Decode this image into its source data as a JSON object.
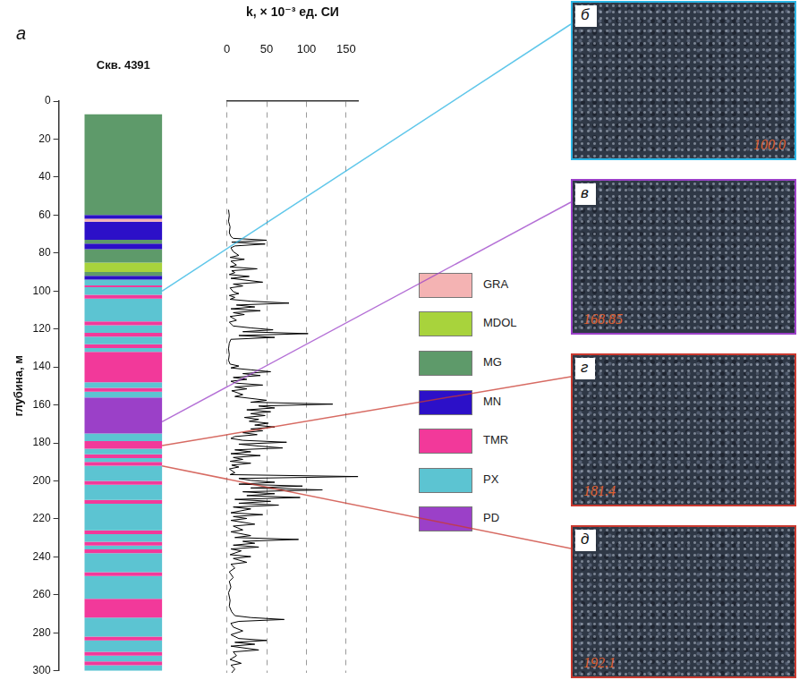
{
  "panel_label": "а",
  "chart_data": [
    {
      "type": "bar",
      "categories": [
        "Скв. 4391"
      ],
      "y_label": "глубина, м",
      "ylim": [
        300,
        0
      ],
      "yticks": [
        0,
        20,
        40,
        60,
        80,
        100,
        120,
        140,
        160,
        180,
        200,
        220,
        240,
        260,
        280,
        300
      ],
      "grid": false,
      "units": [
        {
          "name": "GRA",
          "color": "#f4b3b3"
        },
        {
          "name": "MDOL",
          "color": "#a8d33c"
        },
        {
          "name": "MG",
          "color": "#5e9a6a"
        },
        {
          "name": "MN",
          "color": "#2c10c8"
        },
        {
          "name": "TMR",
          "color": "#f2399a"
        },
        {
          "name": "PX",
          "color": "#5cc4d2"
        },
        {
          "name": "PD",
          "color": "#9b40c8"
        }
      ],
      "intervals": {
        "top": [
          7,
          60,
          62,
          63.5,
          73,
          75,
          78,
          85,
          90,
          92,
          94,
          97,
          98,
          102,
          104,
          116,
          118,
          122,
          124,
          128,
          130,
          132,
          148,
          151,
          153,
          156,
          175,
          179,
          183,
          186,
          188,
          190,
          192,
          200,
          202,
          210,
          212,
          226,
          228,
          232,
          234,
          236,
          238,
          248,
          250,
          262,
          272,
          282,
          284,
          290,
          292,
          295,
          297
        ],
        "bottom": [
          60,
          62,
          63.5,
          73,
          75,
          78,
          85,
          90,
          92,
          94,
          97,
          98,
          102,
          104,
          116,
          118,
          122,
          124,
          128,
          130,
          132,
          148,
          151,
          153,
          156,
          175,
          179,
          183,
          186,
          188,
          190,
          192,
          200,
          202,
          210,
          212,
          226,
          228,
          232,
          234,
          236,
          238,
          248,
          250,
          262,
          272,
          282,
          284,
          290,
          292,
          295,
          297,
          300
        ],
        "unit": [
          "MG",
          "MN",
          "GRA",
          "MN",
          "MG",
          "MN",
          "MG",
          "MDOL",
          "MG",
          "MN",
          "PX",
          "TMR",
          "PX",
          "TMR",
          "PX",
          "TMR",
          "PX",
          "TMR",
          "PX",
          "TMR",
          "PX",
          "TMR",
          "PX",
          "TMR",
          "PX",
          "PD",
          "PX",
          "TMR",
          "PX",
          "TMR",
          "PX",
          "TMR",
          "PX",
          "TMR",
          "PX",
          "TMR",
          "PX",
          "TMR",
          "PX",
          "TMR",
          "PX",
          "TMR",
          "PX",
          "TMR",
          "PX",
          "TMR",
          "PX",
          "TMR",
          "PX",
          "TMR",
          "PX",
          "TMR",
          "PX"
        ]
      }
    },
    {
      "type": "line",
      "x_label": "k, × 10⁻³ ед. СИ",
      "xlim": [
        0,
        165
      ],
      "xticks": [
        0,
        50,
        100,
        150
      ],
      "ylim": [
        300,
        0
      ],
      "grid": true,
      "tick_labels": "x",
      "color": "#000000",
      "depth": [
        57,
        60,
        63,
        66,
        69,
        71,
        72,
        73,
        74,
        75,
        76,
        77,
        79,
        81,
        82,
        83,
        84,
        86,
        87,
        88,
        89,
        90,
        91,
        92,
        93,
        95,
        96,
        97,
        98,
        100,
        101,
        102,
        103,
        104,
        105,
        106,
        107,
        108,
        109,
        110,
        111,
        112,
        113,
        115,
        116,
        118,
        119,
        120,
        121,
        122,
        123,
        124,
        125,
        127,
        130,
        133,
        136,
        138,
        139,
        140,
        141,
        142,
        143,
        144,
        145,
        146,
        147,
        148,
        149,
        150,
        151,
        152,
        154,
        155,
        157,
        158,
        159,
        160,
        161,
        162,
        163,
        164,
        165,
        166,
        167,
        168,
        169,
        170,
        171,
        172,
        173,
        174,
        175,
        176,
        177,
        178,
        179,
        180,
        181,
        182,
        183,
        184,
        185,
        186,
        187,
        188,
        189,
        190,
        191,
        192,
        193,
        195,
        196,
        197,
        198,
        199,
        200,
        201,
        202,
        203,
        204,
        205,
        206,
        207,
        208,
        209,
        210,
        211,
        212,
        213,
        214,
        216,
        217,
        218,
        219,
        220,
        222,
        223,
        225,
        226,
        228,
        229,
        230,
        231,
        232,
        233,
        234,
        235,
        236,
        238,
        239,
        240,
        242,
        243,
        245,
        247,
        250,
        252,
        255,
        258,
        262,
        265,
        268,
        270,
        271,
        272,
        273,
        274,
        276,
        278,
        280,
        282,
        283,
        284,
        285,
        286,
        288,
        289,
        291,
        293,
        295,
        296,
        298,
        300
      ],
      "values": [
        2,
        3,
        2,
        4,
        3,
        5,
        8,
        50,
        6,
        48,
        10,
        5,
        8,
        15,
        4,
        22,
        5,
        12,
        4,
        38,
        6,
        10,
        3,
        28,
        5,
        45,
        8,
        20,
        4,
        8,
        15,
        3,
        10,
        4,
        30,
        78,
        12,
        35,
        5,
        42,
        8,
        22,
        4,
        12,
        3,
        8,
        30,
        58,
        20,
        102,
        15,
        60,
        5,
        3,
        2,
        3,
        2,
        4,
        15,
        5,
        30,
        55,
        20,
        42,
        8,
        25,
        5,
        12,
        45,
        10,
        25,
        6,
        20,
        10,
        50,
        30,
        133,
        40,
        60,
        25,
        55,
        30,
        48,
        22,
        40,
        28,
        52,
        35,
        60,
        30,
        45,
        20,
        38,
        10,
        5,
        20,
        75,
        15,
        40,
        70,
        10,
        30,
        5,
        42,
        8,
        20,
        4,
        30,
        6,
        15,
        3,
        10,
        4,
        165,
        15,
        30,
        60,
        15,
        95,
        30,
        120,
        20,
        60,
        25,
        92,
        10,
        55,
        15,
        65,
        8,
        30,
        5,
        45,
        8,
        25,
        5,
        35,
        8,
        20,
        5,
        30,
        10,
        90,
        20,
        35,
        8,
        40,
        5,
        18,
        4,
        30,
        8,
        25,
        5,
        10,
        3,
        8,
        3,
        5,
        2,
        4,
        3,
        6,
        10,
        30,
        72,
        15,
        5,
        8,
        20,
        5,
        15,
        50,
        10,
        35,
        5,
        40,
        8,
        12,
        4,
        18,
        5,
        10,
        6
      ]
    }
  ],
  "photos": [
    {
      "letter": "б",
      "depth": 100.0,
      "label": "100.0",
      "color": "#2bb4e3"
    },
    {
      "letter": "в",
      "depth": 168.85,
      "label": "168.85",
      "color": "#9b40c8"
    },
    {
      "letter": "г",
      "depth": 181.4,
      "label": "181.4",
      "color": "#c9392f"
    },
    {
      "letter": "д",
      "depth": 192.1,
      "label": "192.1",
      "color": "#c9392f"
    }
  ]
}
